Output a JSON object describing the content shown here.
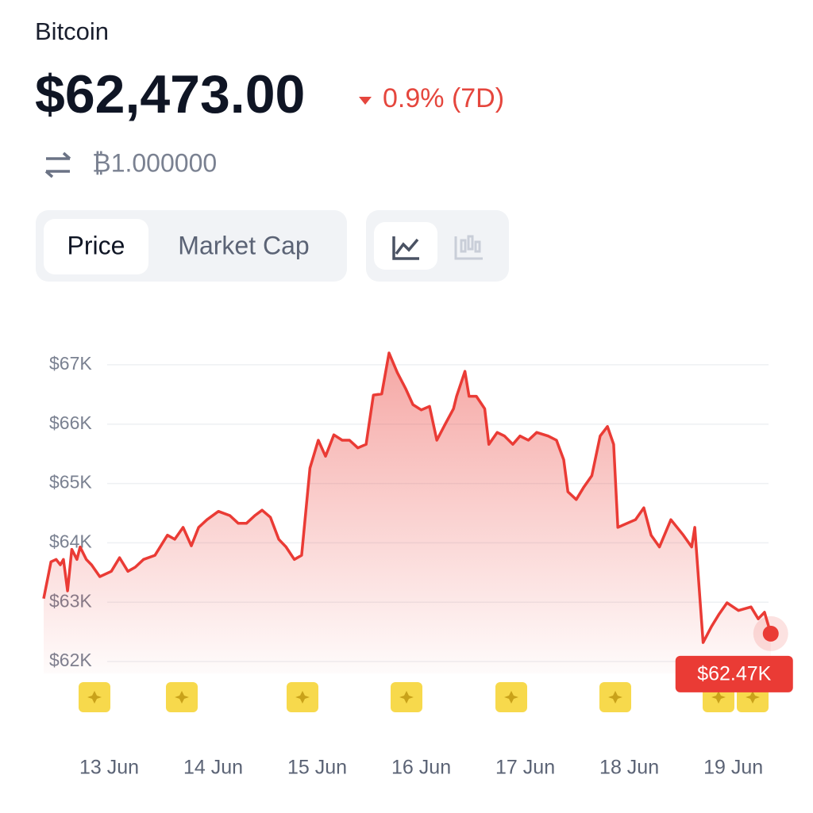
{
  "header": {
    "name": "Bitcoin",
    "price": "$62,473.00",
    "change": "0.9% (7D)",
    "conversion": "₿1.000000"
  },
  "tabs": [
    "Price",
    "Market Cap"
  ],
  "chart_data": {
    "type": "area",
    "x": [
      12.37,
      12.44,
      12.49,
      12.53,
      12.56,
      12.6,
      12.64,
      12.69,
      12.72,
      12.78,
      12.83,
      12.91,
      13.02,
      13.1,
      13.18,
      13.25,
      13.33,
      13.44,
      13.56,
      13.63,
      13.71,
      13.79,
      13.86,
      13.94,
      14.05,
      14.16,
      14.24,
      14.32,
      14.4,
      14.47,
      14.55,
      14.63,
      14.7,
      14.78,
      14.85,
      14.93,
      15.01,
      15.08,
      15.16,
      15.24,
      15.31,
      15.39,
      15.47,
      15.54,
      15.62,
      15.69,
      15.77,
      15.85,
      15.92,
      16.0,
      16.08,
      16.15,
      16.23,
      16.31,
      16.34,
      16.42,
      16.46,
      16.53,
      16.61,
      16.65,
      16.73,
      16.8,
      16.88,
      16.95,
      17.03,
      17.11,
      17.22,
      17.3,
      17.37,
      17.41,
      17.49,
      17.56,
      17.64,
      17.72,
      17.79,
      17.85,
      17.89,
      17.98,
      18.06,
      18.14,
      18.21,
      18.29,
      18.4,
      18.52,
      18.6,
      18.63,
      18.71,
      18.79,
      18.86,
      18.94,
      19.05,
      19.17,
      19.24,
      19.3,
      19.36
    ],
    "series": [
      {
        "color": "#ea3b35",
        "values": [
          63060,
          63680,
          63720,
          63630,
          63720,
          63190,
          63890,
          63720,
          63930,
          63720,
          63630,
          63430,
          63520,
          63750,
          63520,
          63590,
          63720,
          63790,
          64130,
          64060,
          64260,
          63950,
          64260,
          64390,
          64530,
          64460,
          64330,
          64330,
          64460,
          64550,
          64430,
          64060,
          63930,
          63720,
          63790,
          65260,
          65730,
          65460,
          65820,
          65730,
          65730,
          65600,
          65660,
          66490,
          66510,
          67200,
          66870,
          66600,
          66330,
          66240,
          66300,
          65730,
          66000,
          66260,
          66470,
          66890,
          66470,
          66470,
          66260,
          65660,
          65860,
          65800,
          65660,
          65800,
          65730,
          65860,
          65800,
          65730,
          65400,
          64860,
          64730,
          64930,
          65130,
          65800,
          65960,
          65660,
          64260,
          64330,
          64390,
          64590,
          64130,
          63930,
          64390,
          64130,
          63930,
          64260,
          62320,
          62590,
          62790,
          62990,
          62860,
          62920,
          62720,
          62830,
          62470
        ]
      }
    ],
    "xlim": [
      12.37,
      19.4
    ],
    "xticks": [
      {
        "value": 13,
        "label": "13 Jun"
      },
      {
        "value": 14,
        "label": "14 Jun"
      },
      {
        "value": 15,
        "label": "15 Jun"
      },
      {
        "value": 16,
        "label": "16 Jun"
      },
      {
        "value": 17,
        "label": "17 Jun"
      },
      {
        "value": 18,
        "label": "18 Jun"
      },
      {
        "value": 19,
        "label": "19 Jun"
      }
    ],
    "ylim": [
      61800,
      67400
    ],
    "yticks": [
      {
        "value": 62000,
        "label": "$62K"
      },
      {
        "value": 63000,
        "label": "$63K"
      },
      {
        "value": 64000,
        "label": "$64K"
      },
      {
        "value": 65000,
        "label": "$65K"
      },
      {
        "value": 66000,
        "label": "$66K"
      },
      {
        "value": 67000,
        "label": "$67K"
      }
    ],
    "grid": true,
    "annotations": [
      {
        "x": 19.36,
        "y": 62470,
        "text": "$62.47K"
      }
    ]
  }
}
